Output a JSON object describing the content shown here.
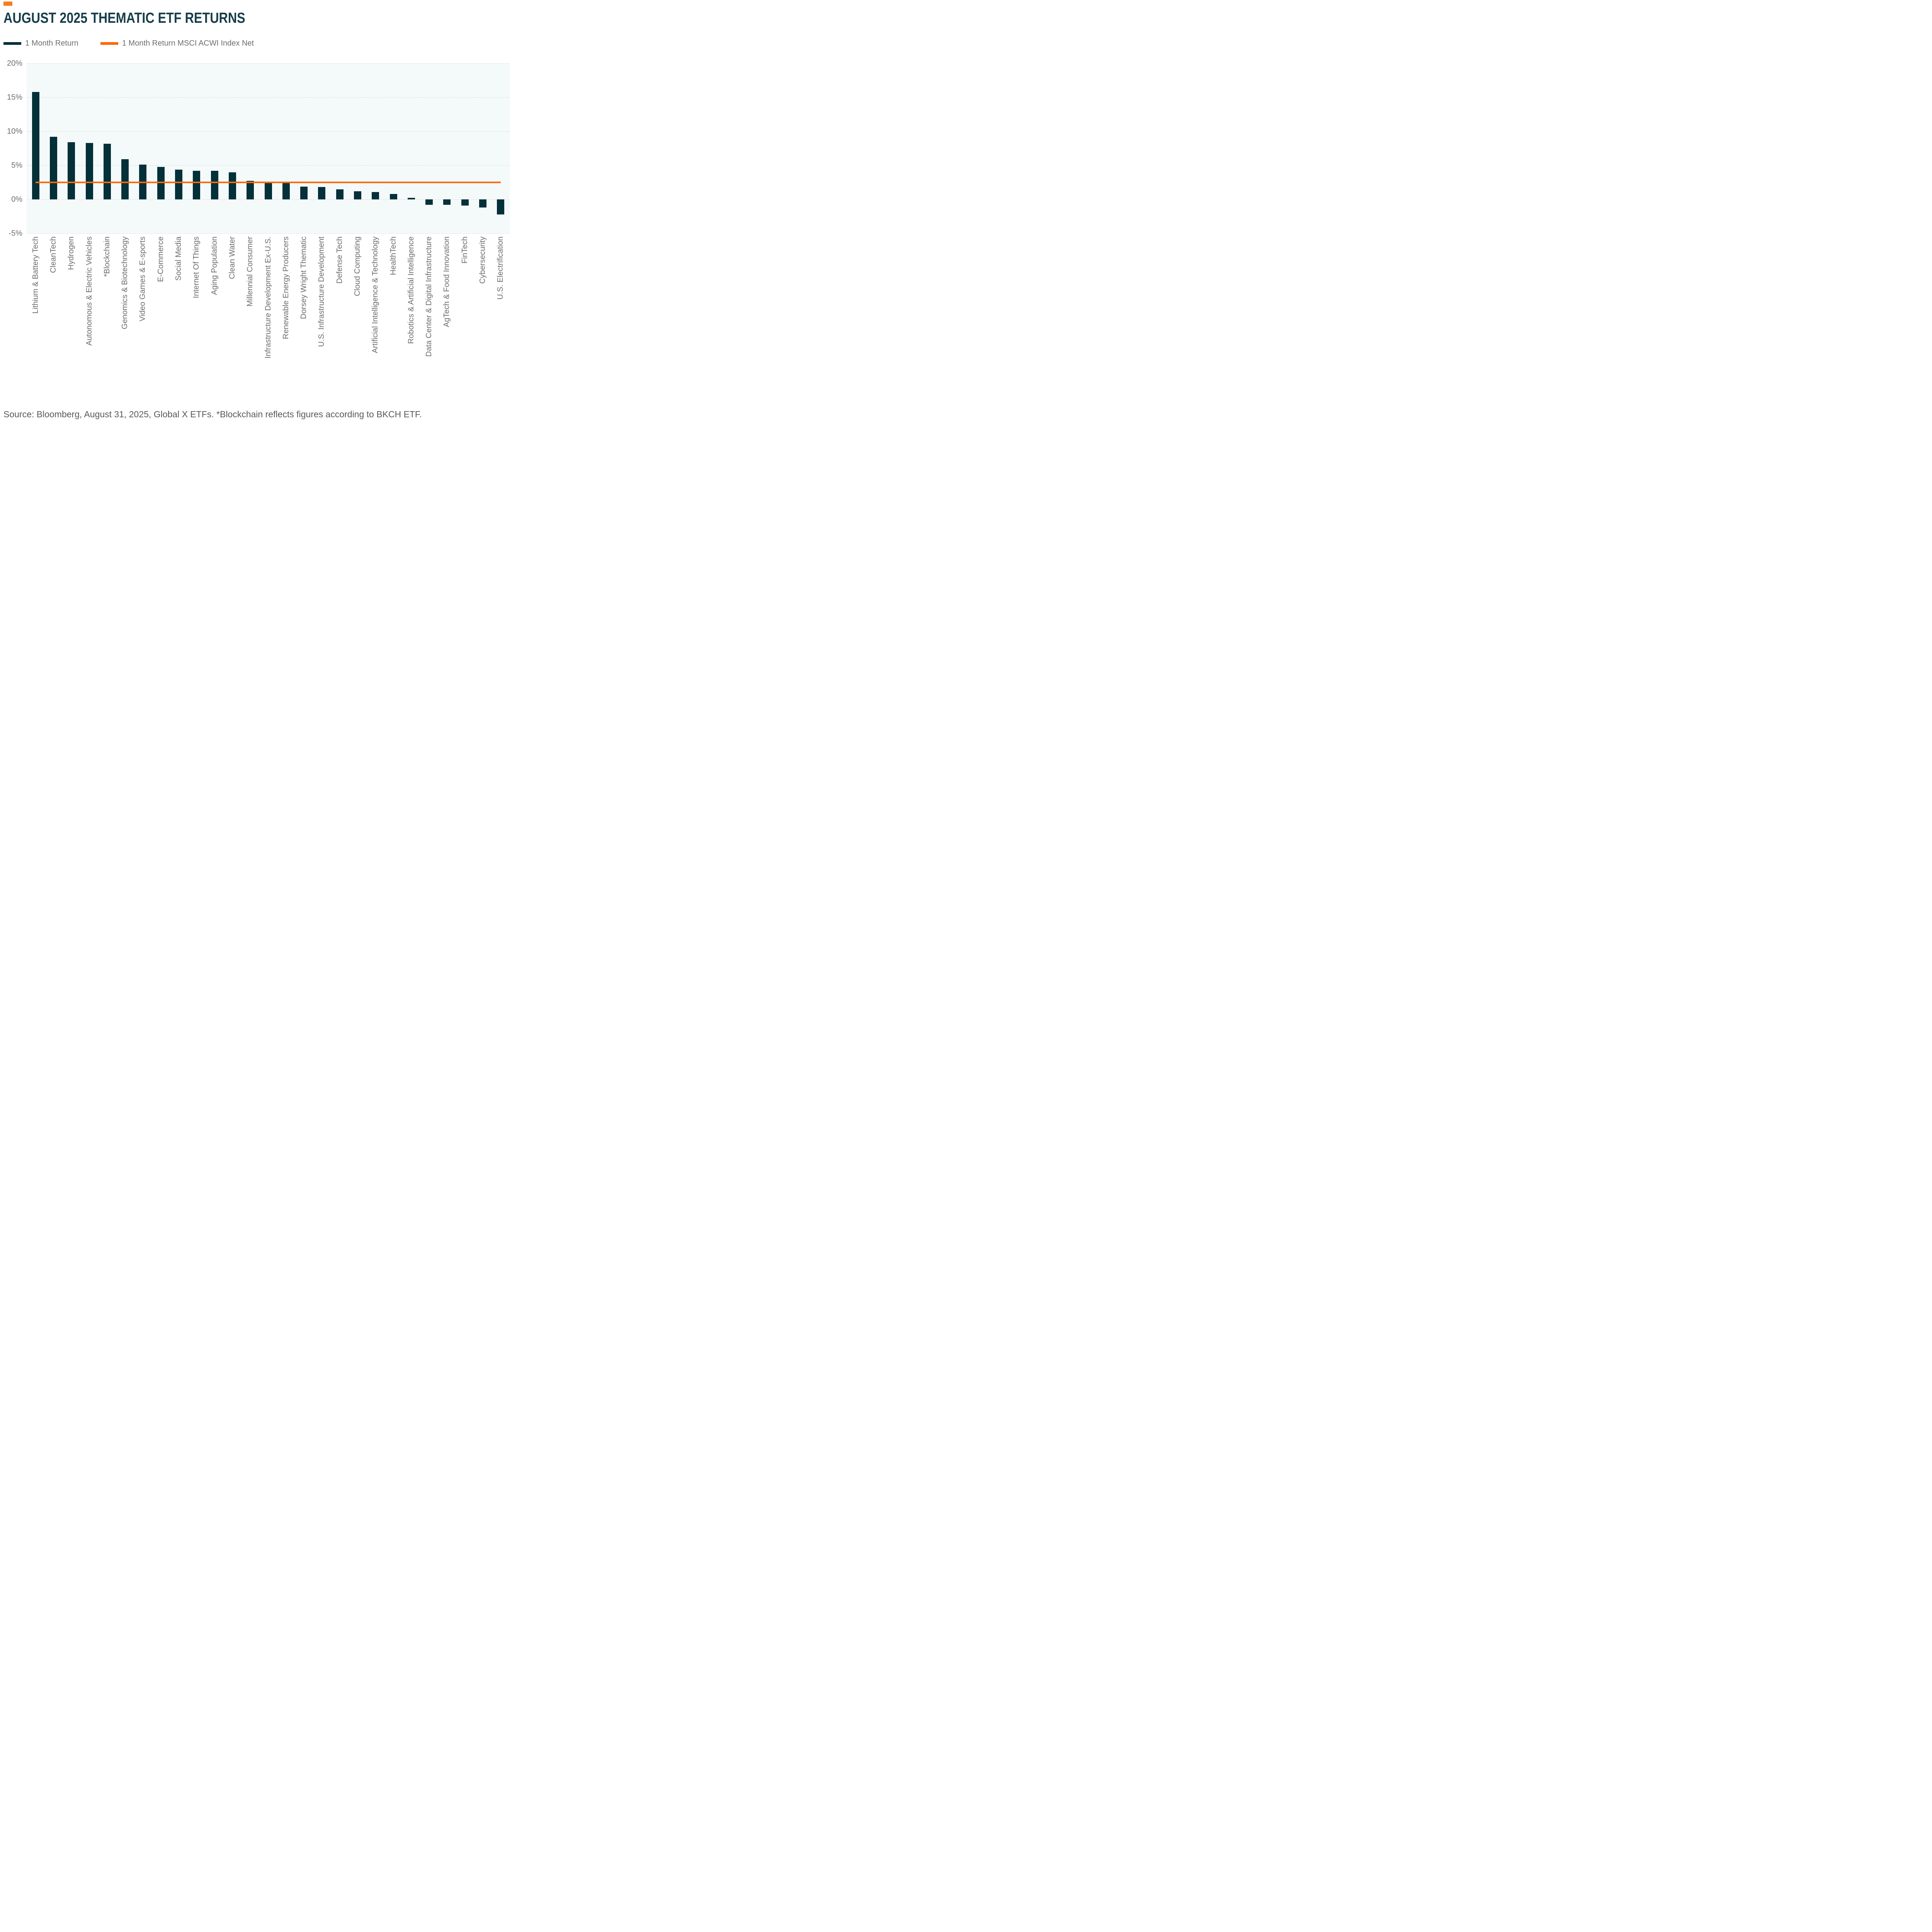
{
  "accent_color": "#f97c1e",
  "header": {
    "title": "AUGUST 2025 THEMATIC ETF RETURNS"
  },
  "legend": [
    {
      "label": "1 Month Return",
      "color": "#033039",
      "marker": "bar-swatch"
    },
    {
      "label": "1 Month Return MSCI ACWI Index Net",
      "color": "#fe6903",
      "marker": "line-swatch"
    }
  ],
  "chart_data": {
    "type": "bar",
    "title": "AUGUST 2025 THEMATIC ETF RETURNS",
    "xlabel": "",
    "ylabel": "",
    "ylim": [
      -5,
      20
    ],
    "yticks": [
      "20%",
      "15%",
      "10%",
      "5%",
      "0%",
      "-5%"
    ],
    "ytick_values": [
      20,
      15,
      10,
      5,
      0,
      -5
    ],
    "grid": true,
    "gridline_style": "dashed",
    "plot_background": "#f4f9fa",
    "legend_position": "top",
    "categories": [
      "Lithium & Battery Tech",
      "CleanTech",
      "Hydrogen",
      "Autonomous & Electric Vehicles",
      "*Blockchain",
      "Genomics & Biotechnology",
      "Video Games & E-sports",
      "E-Commerce",
      "Social Media",
      "Internet Of Things",
      "Aging Population",
      "Clean Water",
      "Millennial Consumer",
      "Infrastructure Development Ex-U.S.",
      "Renewable Energy Producers",
      "Dorsey Wright Thematic",
      "U.S. Infrastructure Development",
      "Defense Tech",
      "Cloud Computing",
      "Artificial Intelligence & Technology",
      "HealthTech",
      "Robotics & Artificial Intelligence",
      "Data Center & Digital Infrastructure",
      "AgTech & Food Innovation",
      "FinTech",
      "Cybersecurity",
      "U.S. Electrification"
    ],
    "series": [
      {
        "name": "1 Month Return",
        "type": "bar",
        "color": "#033039",
        "values": [
          15.8,
          9.2,
          8.4,
          8.3,
          8.2,
          5.9,
          5.1,
          4.8,
          4.4,
          4.2,
          4.2,
          4.0,
          2.7,
          2.5,
          2.4,
          1.9,
          1.8,
          1.5,
          1.2,
          1.1,
          0.8,
          0.2,
          -0.8,
          -0.8,
          -0.9,
          -1.2,
          -2.2
        ]
      },
      {
        "name": "1 Month Return MSCI ACWI Index Net",
        "type": "line",
        "color": "#fe6903",
        "value": 2.5
      }
    ]
  },
  "footer": {
    "source": "Source: Bloomberg, August 31, 2025, Global X ETFs. *Blockchain reflects figures according to BKCH ETF."
  }
}
